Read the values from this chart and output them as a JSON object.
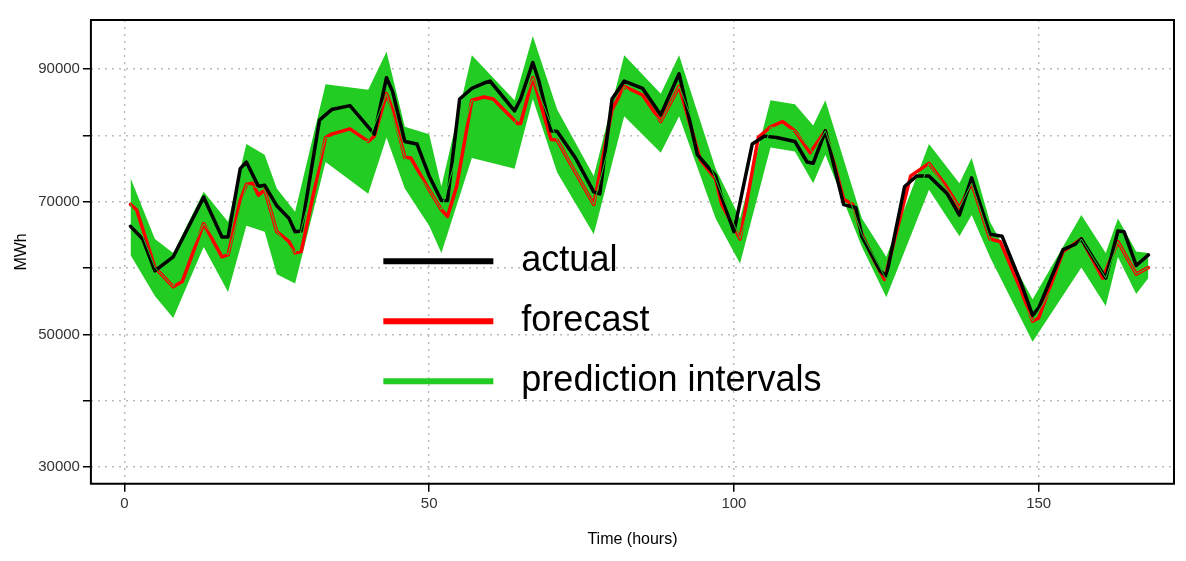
{
  "chart_data": {
    "type": "line",
    "xlabel": "Time (hours)",
    "ylabel": "MWh",
    "xlim": [
      -5.5,
      172.2
    ],
    "ylim": [
      27500,
      97400
    ],
    "xticks": [
      0,
      50,
      100,
      150
    ],
    "yticks": [
      30000,
      {
        "value": 40000,
        "label": null
      },
      50000,
      {
        "value": 60000,
        "label": null
      },
      70000,
      {
        "value": 80000,
        "label": null
      },
      90000
    ],
    "grid": true,
    "legend": "bottom",
    "line_style": "solid",
    "marker": "none",
    "series": [
      {
        "name": "actual",
        "color": "#000000",
        "x": [
          1,
          3,
          5,
          8,
          13,
          16,
          17,
          19,
          20,
          22,
          23,
          25,
          27,
          28,
          29,
          32,
          34,
          37,
          41,
          43,
          44,
          46,
          48,
          50,
          52,
          53,
          55,
          57,
          59,
          60,
          64,
          65,
          67,
          68,
          70,
          71,
          74,
          77,
          78,
          80,
          82,
          85,
          88,
          91,
          94,
          97,
          98,
          100,
          103,
          105,
          107,
          110,
          112,
          113,
          115,
          118,
          120,
          121,
          124,
          125,
          128,
          130,
          132,
          135,
          137,
          139,
          142,
          144,
          147,
          149,
          150,
          154,
          156,
          157,
          161,
          163,
          164,
          166,
          168
        ],
        "values": [
          66300,
          64400,
          59600,
          61700,
          70700,
          64700,
          64700,
          75000,
          76000,
          72300,
          72500,
          69400,
          67500,
          65500,
          65600,
          82300,
          83900,
          84500,
          80200,
          88700,
          86600,
          79100,
          78700,
          73900,
          70200,
          70200,
          85500,
          87100,
          87900,
          88200,
          83700,
          85500,
          91000,
          88200,
          80700,
          80600,
          76600,
          71500,
          71200,
          85500,
          88200,
          87100,
          83100,
          89300,
          77100,
          73900,
          70700,
          65500,
          78700,
          79900,
          79700,
          79100,
          76000,
          75800,
          80700,
          69600,
          69100,
          64800,
          59600,
          58800,
          72300,
          73900,
          73900,
          71200,
          68000,
          73600,
          65100,
          64800,
          58000,
          52900,
          54000,
          62800,
          63600,
          64400,
          58500,
          65600,
          65500,
          60400,
          62000
        ]
      },
      {
        "name": "forecast",
        "color": "#ff0000",
        "x": [
          1,
          2,
          5,
          8,
          9.5,
          13,
          16,
          17,
          19,
          20,
          21,
          22,
          23,
          25,
          27,
          28,
          29,
          33,
          34,
          37,
          40,
          41,
          43,
          44,
          46,
          47,
          50,
          52,
          53,
          54.5,
          57,
          59,
          60.5,
          64.5,
          65,
          67,
          70,
          71,
          73,
          77,
          80,
          82,
          85,
          88,
          91,
          94.5,
          97,
          98,
          101,
          104,
          106,
          108,
          110,
          112.5,
          115,
          118,
          119.5,
          121,
          123,
          124.7,
          129,
          132,
          134.5,
          137,
          139,
          142,
          143.7,
          147,
          149,
          150,
          154,
          157,
          160.5,
          163,
          166,
          168
        ],
        "values": [
          69600,
          68800,
          60100,
          57200,
          58000,
          66700,
          61700,
          62000,
          70200,
          72600,
          72800,
          71000,
          71800,
          65500,
          64000,
          62300,
          62500,
          79700,
          80200,
          81000,
          79100,
          79900,
          86300,
          83900,
          76700,
          76600,
          71800,
          68800,
          67800,
          72300,
          85300,
          85800,
          85500,
          81800,
          81800,
          88700,
          79400,
          79300,
          76000,
          69600,
          83900,
          87400,
          86100,
          82100,
          87400,
          76300,
          73400,
          69600,
          64400,
          79700,
          81300,
          82100,
          80700,
          77400,
          80700,
          70400,
          69600,
          65100,
          61200,
          58300,
          73900,
          75800,
          72800,
          69100,
          72800,
          64400,
          64000,
          56900,
          52000,
          52500,
          62500,
          64400,
          58500,
          64000,
          59100,
          60100
        ]
      },
      {
        "name": "prediction intervals",
        "type": "line",
        "color": "#22cc22",
        "x": [
          1,
          5,
          8,
          13,
          17,
          20,
          23,
          25,
          28,
          33,
          40,
          43,
          46,
          50,
          52,
          57,
          64,
          67,
          71,
          77,
          82,
          88,
          91,
          97,
          101,
          106,
          110,
          113,
          115,
          121,
          125,
          132,
          137,
          139,
          142,
          149,
          157,
          161,
          163,
          166,
          168
        ],
        "values": [
          69600,
          60100,
          57200,
          66700,
          62000,
          72600,
          71800,
          65500,
          62300,
          79700,
          79100,
          86300,
          76700,
          71800,
          68800,
          85300,
          81800,
          88700,
          79300,
          69600,
          87400,
          82100,
          87400,
          73400,
          64400,
          81300,
          80700,
          77400,
          80700,
          65100,
          58300,
          75800,
          69100,
          72800,
          64400,
          52000,
          64400,
          58500,
          64000,
          59100,
          60100
        ],
        "lower": [
          62000,
          55800,
          52500,
          63200,
          56400,
          66400,
          65500,
          59100,
          57700,
          76000,
          71200,
          79700,
          72000,
          66400,
          62300,
          76600,
          75000,
          85500,
          74400,
          65100,
          82900,
          77400,
          82900,
          67500,
          60700,
          78200,
          77600,
          72800,
          77100,
          63200,
          55600,
          71800,
          64800,
          68000,
          61700,
          48900,
          60100,
          54300,
          61700,
          56100,
          58500
        ],
        "upper": [
          73600,
          64400,
          62300,
          71500,
          67000,
          78700,
          77100,
          72000,
          68500,
          87700,
          86900,
          92600,
          81300,
          80200,
          72300,
          92100,
          85300,
          95000,
          83900,
          73900,
          92100,
          86300,
          92100,
          75000,
          67500,
          85300,
          84700,
          81500,
          85300,
          67500,
          61700,
          78700,
          72800,
          76600,
          67000,
          55300,
          68000,
          62300,
          67500,
          62500,
          62300
        ]
      }
    ]
  }
}
